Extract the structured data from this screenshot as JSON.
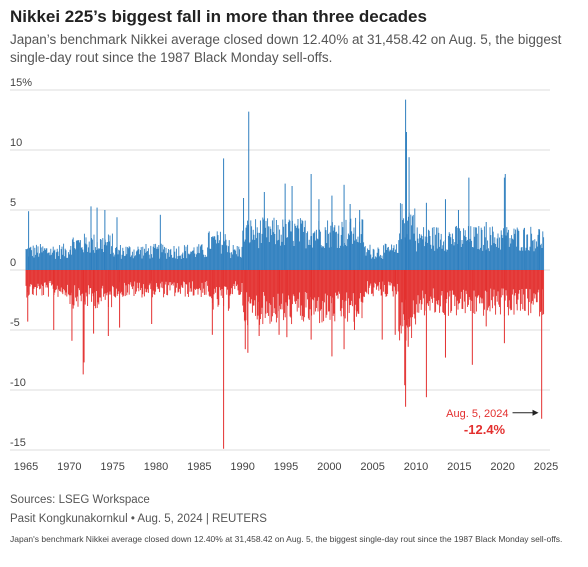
{
  "header": {
    "title": "Nikkei 225’s biggest fall in more than three decades",
    "subtitle": "Japan’s benchmark Nikkei average closed down 12.40% at 31,458.42 on Aug. 5, the biggest single-day rout since the 1987 Black Monday sell-offs."
  },
  "footer": {
    "sources": "Sources: LSEG Workspace",
    "credit": "Pasit Kongkunakornkul • Aug. 5, 2024 | REUTERS",
    "caption": "Japan's benchmark Nikkei average closed down 12.40% at 31,458.42 on Aug. 5, the biggest single-day rout since the 1987 Black Monday sell-offs."
  },
  "colors": {
    "up": "#2f7fbf",
    "down": "#e3302f",
    "grid": "#dddddd",
    "annotation": "#e3302f"
  },
  "chart_data": {
    "type": "bar",
    "title": "Nikkei 225’s biggest fall in more than three decades",
    "xlabel": "",
    "ylabel": "",
    "xlim": [
      1965,
      2025
    ],
    "ylim": [
      -15,
      15
    ],
    "x_ticks": [
      "1965",
      "1970",
      "1975",
      "1980",
      "1985",
      "1990",
      "1995",
      "2000",
      "2005",
      "2010",
      "2015",
      "2020",
      "2025"
    ],
    "y_ticks": [
      {
        "value": 15,
        "label": "15%"
      },
      {
        "value": 10,
        "label": "10"
      },
      {
        "value": 5,
        "label": "5"
      },
      {
        "value": 0,
        "label": "0"
      },
      {
        "value": -5,
        "label": "-5"
      },
      {
        "value": -10,
        "label": "-10"
      },
      {
        "value": -15,
        "label": "-15"
      }
    ],
    "grid": true,
    "series": [
      {
        "color": "#2f7fbf",
        "sign": "up",
        "notable": [
          {
            "year": 1965.3,
            "value": 4.9
          },
          {
            "year": 1972.5,
            "value": 5.3
          },
          {
            "year": 1973.2,
            "value": 5.2
          },
          {
            "year": 1974.1,
            "value": 5.0
          },
          {
            "year": 1975.5,
            "value": 4.4
          },
          {
            "year": 1980.5,
            "value": 4.6
          },
          {
            "year": 1987.8,
            "value": 9.3
          },
          {
            "year": 1990.1,
            "value": 6.0
          },
          {
            "year": 1990.7,
            "value": 13.2
          },
          {
            "year": 1992.5,
            "value": 6.5
          },
          {
            "year": 1994.9,
            "value": 7.2
          },
          {
            "year": 1995.7,
            "value": 7.0
          },
          {
            "year": 1997.9,
            "value": 8.0
          },
          {
            "year": 1998.8,
            "value": 5.9
          },
          {
            "year": 2000.3,
            "value": 6.2
          },
          {
            "year": 2001.7,
            "value": 7.1
          },
          {
            "year": 2002.4,
            "value": 5.5
          },
          {
            "year": 2003.5,
            "value": 5.0
          },
          {
            "year": 2008.8,
            "value": 14.2
          },
          {
            "year": 2008.9,
            "value": 11.5
          },
          {
            "year": 2009.2,
            "value": 9.4
          },
          {
            "year": 2011.2,
            "value": 5.6
          },
          {
            "year": 2013.4,
            "value": 5.9
          },
          {
            "year": 2014.9,
            "value": 5.0
          },
          {
            "year": 2016.1,
            "value": 7.7
          },
          {
            "year": 2018.1,
            "value": 4.0
          },
          {
            "year": 2020.2,
            "value": 7.7
          },
          {
            "year": 2020.3,
            "value": 8.0
          },
          {
            "year": 2022.5,
            "value": 3.5
          },
          {
            "year": 2024.2,
            "value": 3.2
          }
        ]
      },
      {
        "color": "#e3302f",
        "sign": "down",
        "notable": [
          {
            "year": 1965.2,
            "value": -4.3
          },
          {
            "year": 1968.2,
            "value": -5.0
          },
          {
            "year": 1970.3,
            "value": -5.9
          },
          {
            "year": 1971.6,
            "value": -8.7
          },
          {
            "year": 1971.7,
            "value": -7.7
          },
          {
            "year": 1972.8,
            "value": -5.3
          },
          {
            "year": 1974.5,
            "value": -5.5
          },
          {
            "year": 1975.8,
            "value": -4.8
          },
          {
            "year": 1979.5,
            "value": -4.5
          },
          {
            "year": 1986.5,
            "value": -5.4
          },
          {
            "year": 1987.8,
            "value": -14.9
          },
          {
            "year": 1990.3,
            "value": -6.6
          },
          {
            "year": 1990.6,
            "value": -6.9
          },
          {
            "year": 1991.9,
            "value": -5.5
          },
          {
            "year": 1994.2,
            "value": -5.4
          },
          {
            "year": 1995.1,
            "value": -5.6
          },
          {
            "year": 1997.9,
            "value": -5.8
          },
          {
            "year": 2000.3,
            "value": -7.2
          },
          {
            "year": 2001.7,
            "value": -6.6
          },
          {
            "year": 2002.9,
            "value": -5.0
          },
          {
            "year": 2006.1,
            "value": -5.8
          },
          {
            "year": 2007.6,
            "value": -5.4
          },
          {
            "year": 2008.8,
            "value": -11.4
          },
          {
            "year": 2008.7,
            "value": -9.6
          },
          {
            "year": 2009.1,
            "value": -6.4
          },
          {
            "year": 2011.2,
            "value": -10.6
          },
          {
            "year": 2013.4,
            "value": -7.3
          },
          {
            "year": 2016.5,
            "value": -7.9
          },
          {
            "year": 2018.1,
            "value": -4.7
          },
          {
            "year": 2020.2,
            "value": -6.1
          },
          {
            "year": 2024.5,
            "value": -12.4
          }
        ]
      }
    ],
    "annotation": {
      "date": "Aug. 5, 2024",
      "value_label": "-12.4%",
      "year": 2024.6,
      "value": -12.4
    }
  }
}
